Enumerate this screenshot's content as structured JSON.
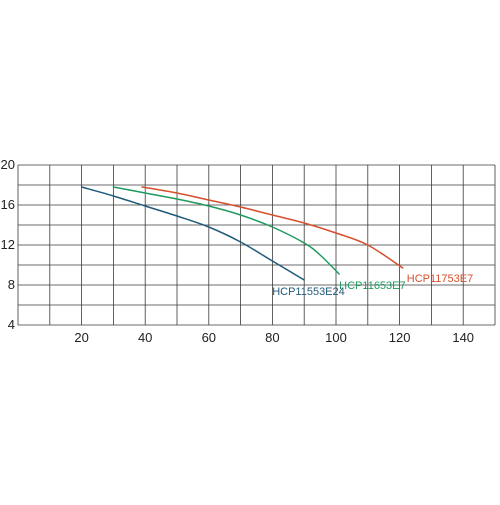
{
  "chart_data": {
    "type": "line",
    "title": "",
    "xlabel": "",
    "ylabel": "",
    "xlim": [
      0,
      150
    ],
    "ylim": [
      4,
      20
    ],
    "x_grid_step": 10,
    "y_grid_step": 2,
    "x_ticks": [
      20,
      40,
      60,
      80,
      100,
      120,
      140
    ],
    "y_ticks": [
      4,
      8,
      12,
      16,
      20
    ],
    "grid": true,
    "legend": "none (series labelled at line ends)",
    "series": [
      {
        "name": "HCP11553E24",
        "color": "#1f5a7a",
        "points": [
          [
            20,
            17.8
          ],
          [
            30,
            16.9
          ],
          [
            40,
            15.9
          ],
          [
            50,
            14.9
          ],
          [
            60,
            13.8
          ],
          [
            70,
            12.3
          ],
          [
            80,
            10.4
          ],
          [
            90,
            8.5
          ]
        ]
      },
      {
        "name": "HCP11653E7",
        "color": "#1f9a5e",
        "points": [
          [
            30,
            17.8
          ],
          [
            40,
            17.2
          ],
          [
            50,
            16.6
          ],
          [
            60,
            15.9
          ],
          [
            70,
            15.0
          ],
          [
            80,
            13.8
          ],
          [
            90,
            12.2
          ],
          [
            95,
            11.0
          ],
          [
            101,
            9.1
          ]
        ]
      },
      {
        "name": "HCP11753E7",
        "color": "#d4502e",
        "points": [
          [
            39,
            17.8
          ],
          [
            50,
            17.2
          ],
          [
            60,
            16.5
          ],
          [
            70,
            15.8
          ],
          [
            80,
            15.0
          ],
          [
            90,
            14.2
          ],
          [
            100,
            13.2
          ],
          [
            110,
            12.0
          ],
          [
            121,
            9.7
          ]
        ]
      }
    ]
  }
}
